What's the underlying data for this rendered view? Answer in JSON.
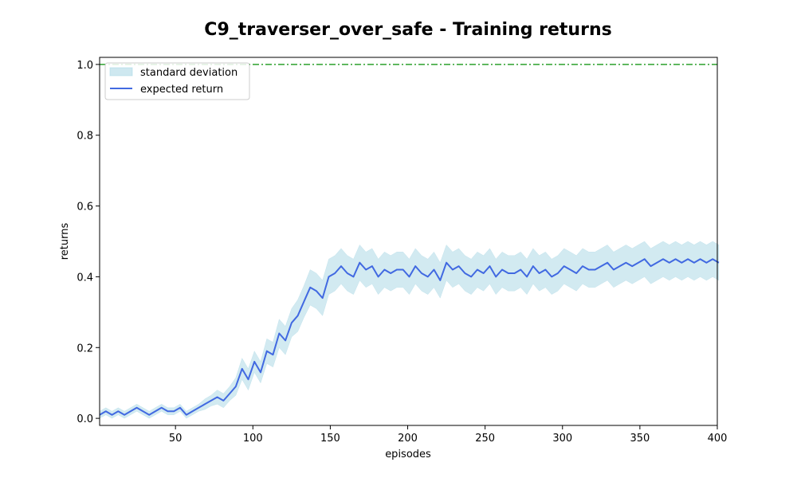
{
  "chart_data": {
    "type": "line",
    "title": "C9_traverser_over_safe - Training returns",
    "xlabel": "episodes",
    "ylabel": "returns",
    "xlim": [
      1,
      400
    ],
    "ylim": [
      -0.02,
      1.02
    ],
    "xticks": [
      50,
      100,
      150,
      200,
      250,
      300,
      350,
      400
    ],
    "yticks": [
      0.0,
      0.2,
      0.4,
      0.6,
      0.8,
      1.0
    ],
    "grid": false,
    "legend": {
      "placement": "top-left",
      "entries": [
        "standard deviation",
        "expected return"
      ]
    },
    "reference_line": {
      "y": 1.0,
      "style": "dash-dot",
      "color": "#2ca02c"
    },
    "colors": {
      "mean_line": "#4169e1",
      "std_band": "#add8e6",
      "reference": "#2ca02c"
    },
    "series": [
      {
        "name": "expected return",
        "x_start": 1,
        "x_step": 4,
        "values": [
          0.01,
          0.02,
          0.01,
          0.02,
          0.01,
          0.02,
          0.03,
          0.02,
          0.01,
          0.02,
          0.03,
          0.02,
          0.02,
          0.03,
          0.01,
          0.02,
          0.03,
          0.04,
          0.05,
          0.06,
          0.05,
          0.07,
          0.09,
          0.14,
          0.11,
          0.16,
          0.13,
          0.19,
          0.18,
          0.24,
          0.22,
          0.27,
          0.29,
          0.33,
          0.37,
          0.36,
          0.34,
          0.4,
          0.41,
          0.43,
          0.41,
          0.4,
          0.44,
          0.42,
          0.43,
          0.4,
          0.42,
          0.41,
          0.42,
          0.42,
          0.4,
          0.43,
          0.41,
          0.4,
          0.42,
          0.39,
          0.44,
          0.42,
          0.43,
          0.41,
          0.4,
          0.42,
          0.41,
          0.43,
          0.4,
          0.42,
          0.41,
          0.41,
          0.42,
          0.4,
          0.43,
          0.41,
          0.42,
          0.4,
          0.41,
          0.43,
          0.42,
          0.41,
          0.43,
          0.42,
          0.42,
          0.43,
          0.44,
          0.42,
          0.43,
          0.44,
          0.43,
          0.44,
          0.45,
          0.43,
          0.44,
          0.45,
          0.44,
          0.45,
          0.44,
          0.45,
          0.44,
          0.45,
          0.44,
          0.45,
          0.44
        ]
      },
      {
        "name": "standard deviation",
        "x_start": 1,
        "x_step": 4,
        "values": [
          0.01,
          0.01,
          0.01,
          0.01,
          0.01,
          0.01,
          0.01,
          0.01,
          0.01,
          0.01,
          0.01,
          0.01,
          0.01,
          0.01,
          0.01,
          0.01,
          0.01,
          0.015,
          0.015,
          0.02,
          0.02,
          0.02,
          0.025,
          0.03,
          0.03,
          0.03,
          0.03,
          0.035,
          0.035,
          0.04,
          0.04,
          0.04,
          0.045,
          0.045,
          0.05,
          0.05,
          0.05,
          0.05,
          0.05,
          0.05,
          0.05,
          0.05,
          0.05,
          0.05,
          0.05,
          0.05,
          0.05,
          0.05,
          0.05,
          0.05,
          0.05,
          0.05,
          0.05,
          0.05,
          0.05,
          0.05,
          0.05,
          0.05,
          0.05,
          0.05,
          0.05,
          0.05,
          0.05,
          0.05,
          0.05,
          0.05,
          0.05,
          0.05,
          0.05,
          0.05,
          0.05,
          0.05,
          0.05,
          0.05,
          0.05,
          0.05,
          0.05,
          0.05,
          0.05,
          0.05,
          0.05,
          0.05,
          0.05,
          0.05,
          0.05,
          0.05,
          0.05,
          0.05,
          0.05,
          0.05,
          0.05,
          0.05,
          0.05,
          0.05,
          0.05,
          0.05,
          0.05,
          0.05,
          0.05,
          0.05,
          0.05
        ]
      }
    ]
  }
}
